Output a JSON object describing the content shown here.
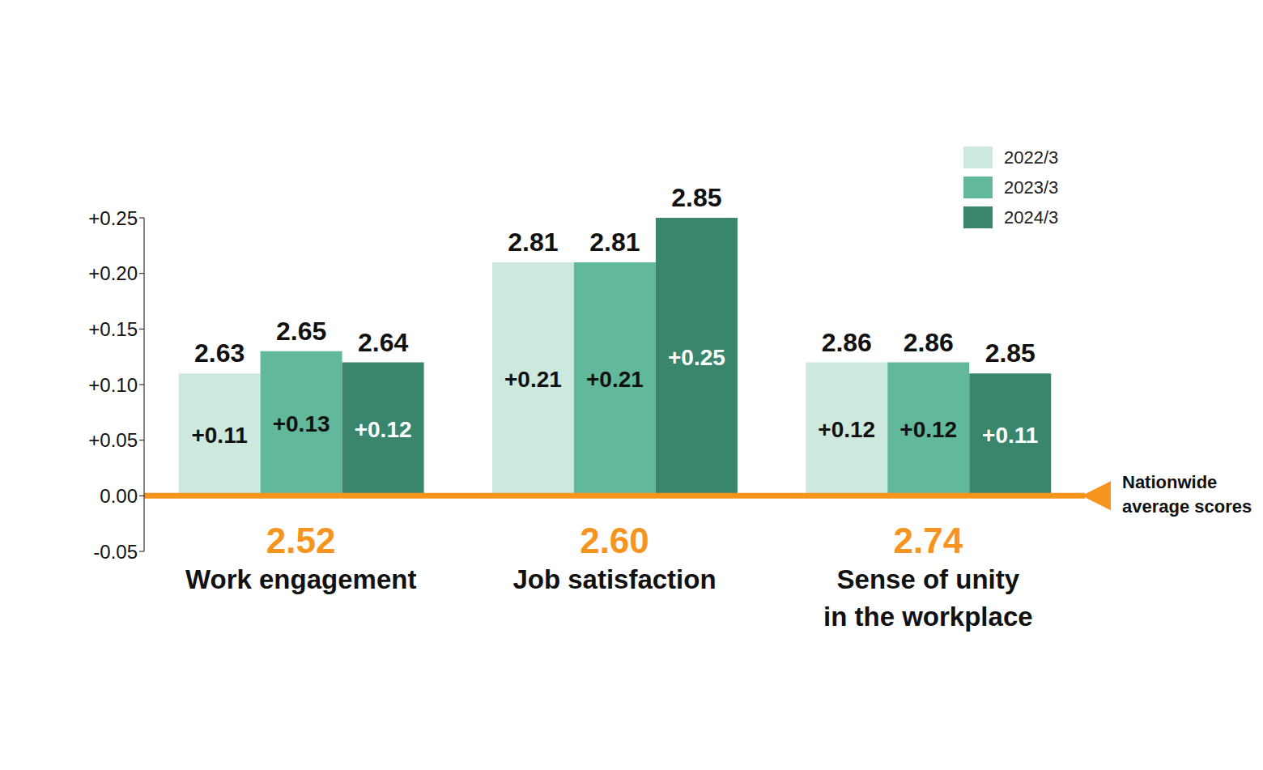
{
  "chart_data": {
    "type": "bar",
    "categories": [
      "Work engagement",
      "Job satisfaction",
      "Sense of unity in the workplace"
    ],
    "series": [
      {
        "name": "2022/3",
        "color": "#cde8dd",
        "values": [
          0.11,
          0.21,
          0.12
        ],
        "value_labels": [
          "+0.11",
          "+0.21",
          "+0.12"
        ],
        "scores": [
          2.63,
          2.81,
          2.86
        ]
      },
      {
        "name": "2023/3",
        "color": "#62b89b",
        "values": [
          0.13,
          0.21,
          0.12
        ],
        "value_labels": [
          "+0.13",
          "+0.21",
          "+0.12"
        ],
        "scores": [
          2.65,
          2.81,
          2.86
        ]
      },
      {
        "name": "2024/3",
        "color": "#3a866c",
        "values": [
          0.12,
          0.25,
          0.11
        ],
        "value_labels": [
          "+0.12",
          "+0.25",
          "+0.11"
        ],
        "scores": [
          2.64,
          2.85,
          2.85
        ]
      }
    ],
    "ylim": [
      -0.05,
      0.25
    ],
    "yticks": [
      {
        "value": -0.05,
        "label": "-0.05"
      },
      {
        "value": 0,
        "label": "0.00"
      },
      {
        "value": 0.05,
        "label": "+0.05"
      },
      {
        "value": 0.1,
        "label": "+0.10"
      },
      {
        "value": 0.15,
        "label": "+0.15"
      },
      {
        "value": 0.2,
        "label": "+0.20"
      },
      {
        "value": 0.25,
        "label": "+0.25"
      }
    ],
    "grid": false,
    "legend": "upper right",
    "data_labels": true,
    "reference": {
      "label": "Nationwide average scores",
      "y": 0,
      "color": "#f7941d",
      "values": [
        2.52,
        2.6,
        2.74
      ],
      "value_labels": [
        "2.52",
        "2.60",
        "2.74"
      ]
    }
  }
}
